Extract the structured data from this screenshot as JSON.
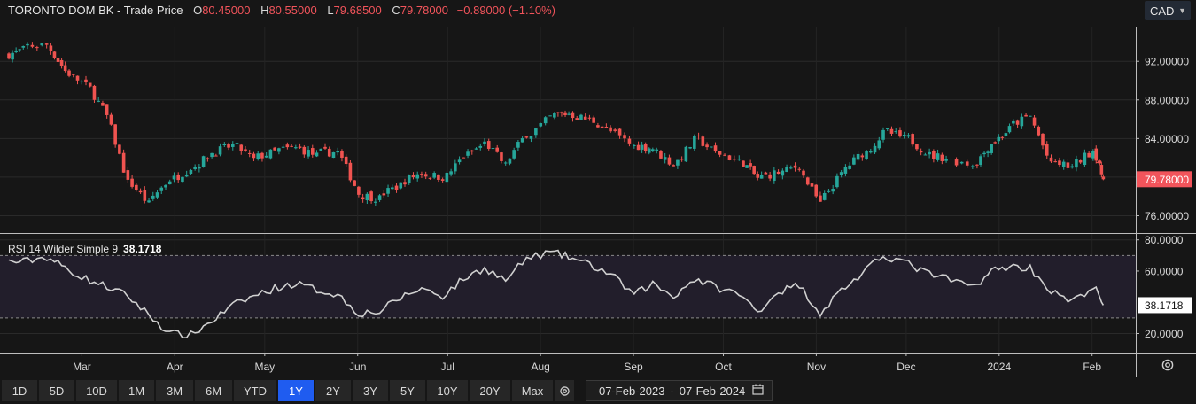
{
  "header": {
    "symbol": "TORONTO DOM BK - Trade Price",
    "open_label": "O",
    "open": "80.45000",
    "high_label": "H",
    "high": "80.55000",
    "low_label": "L",
    "low": "79.68500",
    "close_label": "C",
    "close": "79.78000",
    "change": "−0.89000 (−1.10%)"
  },
  "currency": "CAD",
  "colors": {
    "up": "#26a69a",
    "down": "#ef5350",
    "last_price_tag": "#f2545b",
    "rsi_line": "#d0d0d0",
    "active": "#1f5cf0"
  },
  "rsi_header": {
    "label": "RSI 14 Wilder Simple 9",
    "value": "38.1718"
  },
  "range_buttons": [
    "1D",
    "5D",
    "10D",
    "1M",
    "3M",
    "6M",
    "YTD",
    "1Y",
    "2Y",
    "3Y",
    "5Y",
    "10Y",
    "20Y",
    "Max"
  ],
  "active_range": "1Y",
  "date_range": {
    "from": "07-Feb-2023",
    "to": "07-Feb-2024"
  },
  "chart_data": [
    {
      "type": "candlestick",
      "title": "TORONTO DOM BK - Trade Price",
      "y_ticks": [
        "92.00000",
        "88.00000",
        "84.00000",
        "76.00000"
      ],
      "ylim": [
        74.3,
        95.6
      ],
      "last_price": "79.78000",
      "x_tick_labels": [
        "Mar",
        "Apr",
        "May",
        "Jun",
        "Jul",
        "Aug",
        "Sep",
        "Oct",
        "Nov",
        "Dec",
        "2024",
        "Feb"
      ],
      "x": [
        "2023-02-07",
        "2023-02-13",
        "2023-02-21",
        "2023-02-27",
        "2023-03-06",
        "2023-03-13",
        "2023-03-20",
        "2023-03-27",
        "2023-04-03",
        "2023-04-10",
        "2023-04-17",
        "2023-04-24",
        "2023-05-01",
        "2023-05-08",
        "2023-05-15",
        "2023-05-22",
        "2023-05-29",
        "2023-06-05",
        "2023-06-12",
        "2023-06-19",
        "2023-06-26",
        "2023-07-03",
        "2023-07-10",
        "2023-07-17",
        "2023-07-24",
        "2023-07-31",
        "2023-08-08",
        "2023-08-14",
        "2023-08-21",
        "2023-08-28",
        "2023-09-05",
        "2023-09-11",
        "2023-09-18",
        "2023-09-25",
        "2023-10-02",
        "2023-10-10",
        "2023-10-16",
        "2023-10-23",
        "2023-10-30",
        "2023-11-06",
        "2023-11-13",
        "2023-11-20",
        "2023-11-27",
        "2023-12-04",
        "2023-12-11",
        "2023-12-18",
        "2023-12-27",
        "2024-01-02",
        "2024-01-08",
        "2024-01-15",
        "2024-01-22",
        "2024-01-29",
        "2024-02-05"
      ],
      "close": [
        93.2,
        93.7,
        91.0,
        89.5,
        86.3,
        79.4,
        77.2,
        79.8,
        81.0,
        82.5,
        83.3,
        81.8,
        82.6,
        83.0,
        82.2,
        82.6,
        78.3,
        77.8,
        79.2,
        80.5,
        80.0,
        82.2,
        83.5,
        81.2,
        84.5,
        86.2,
        86.6,
        85.9,
        84.7,
        83.2,
        83.0,
        81.3,
        83.8,
        82.5,
        81.6,
        79.9,
        80.5,
        81.2,
        77.2,
        80.3,
        82.5,
        84.5,
        84.0,
        82.6,
        82.0,
        81.3,
        83.5,
        85.0,
        86.3,
        81.2,
        81.0,
        82.8,
        79.8
      ]
    },
    {
      "type": "line",
      "title": "RSI 14 Wilder Simple 9",
      "y_ticks": [
        "80.0000",
        "60.0000",
        "20.0000"
      ],
      "ylim": [
        7.8,
        83.8
      ],
      "guides": [
        70,
        30
      ],
      "last_value": "38.1718",
      "x_tick_labels": [
        "Mar",
        "Apr",
        "May",
        "Jun",
        "Jul",
        "Aug",
        "Sep",
        "Oct",
        "Nov",
        "Dec",
        "2024",
        "Feb"
      ],
      "values": [
        66,
        69,
        62,
        55,
        50,
        44,
        32,
        20,
        19,
        28,
        38,
        44,
        49,
        52,
        48,
        45,
        33,
        34,
        43,
        49,
        44,
        55,
        62,
        54,
        68,
        72,
        69,
        64,
        58,
        45,
        52,
        44,
        55,
        50,
        45,
        34,
        47,
        51,
        33,
        48,
        58,
        70,
        66,
        59,
        55,
        50,
        60,
        63,
        62,
        47,
        40,
        50,
        38.17
      ]
    }
  ]
}
